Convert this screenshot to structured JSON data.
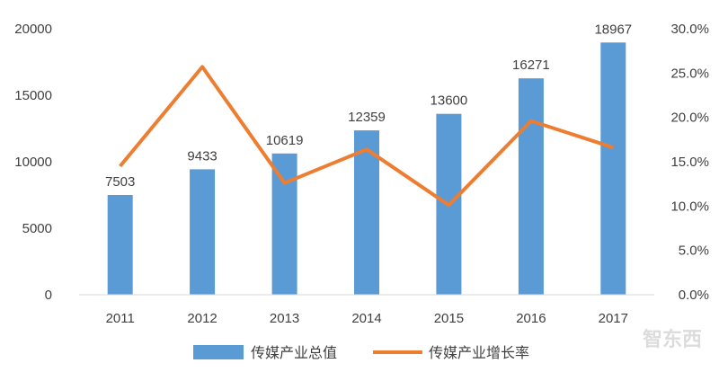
{
  "chart_data": {
    "type": "bar",
    "categories": [
      "2011",
      "2012",
      "2013",
      "2014",
      "2015",
      "2016",
      "2017"
    ],
    "series": [
      {
        "name": "传媒产业总值",
        "type": "bar",
        "axis": "left",
        "values": [
          7503,
          9433,
          10619,
          12359,
          13600,
          16271,
          18967
        ],
        "color": "#5b9bd5"
      },
      {
        "name": "传媒产业增长率",
        "type": "line",
        "axis": "right",
        "values": [
          14.5,
          25.7,
          12.6,
          16.4,
          10.1,
          19.6,
          16.6
        ],
        "color": "#ed7d31"
      }
    ],
    "y_left": {
      "ylim": [
        0,
        20000
      ],
      "ticks": [
        0,
        5000,
        10000,
        15000,
        20000
      ],
      "tick_labels": [
        "0",
        "5000",
        "10000",
        "15000",
        "20000"
      ]
    },
    "y_right": {
      "ylim": [
        0,
        30
      ],
      "ticks": [
        0,
        5,
        10,
        15,
        20,
        25,
        30
      ],
      "tick_labels": [
        "0.0%",
        "5.0%",
        "10.0%",
        "15.0%",
        "20.0%",
        "25.0%",
        "30.0%"
      ]
    },
    "data_labels": [
      "7503",
      "9433",
      "10619",
      "12359",
      "13600",
      "16271",
      "18967"
    ],
    "grid": false,
    "legend": "bottom",
    "watermark": "智东西"
  }
}
